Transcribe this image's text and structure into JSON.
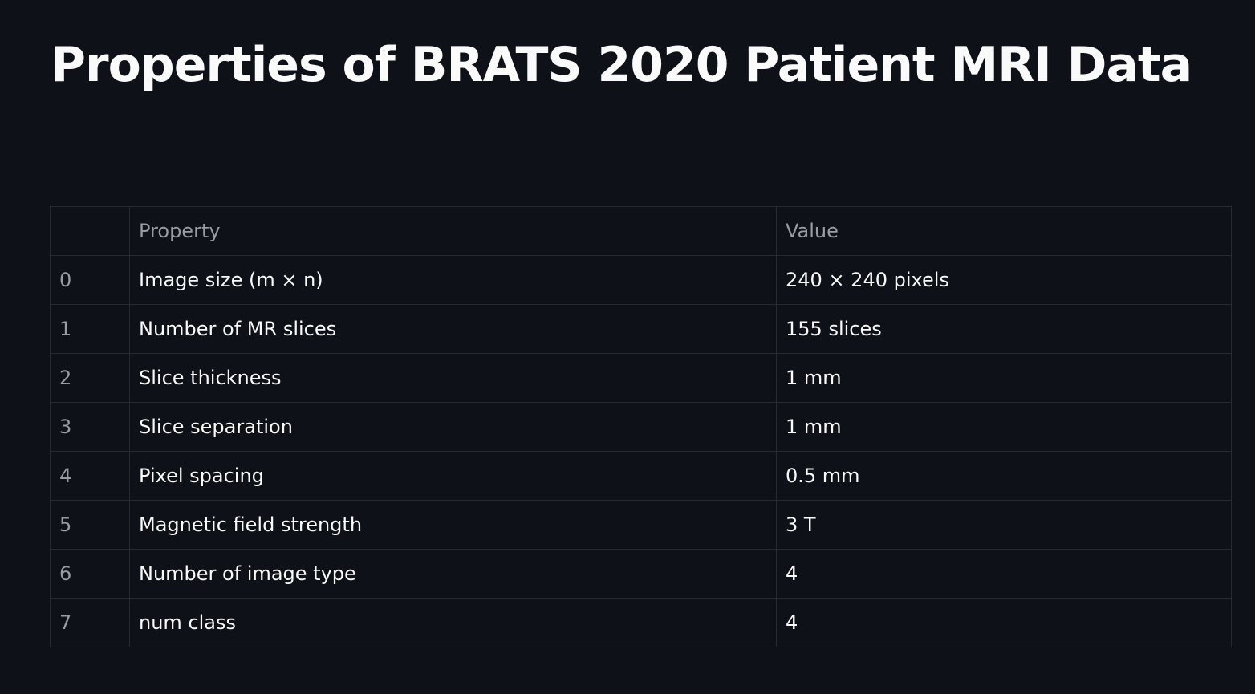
{
  "page": {
    "title": "Properties of BRATS 2020 Patient MRI Data"
  },
  "table": {
    "columns": [
      "",
      "Property",
      "Value"
    ],
    "rows": [
      {
        "index": "0",
        "property": "Image size (m × n)",
        "value": "240 × 240 pixels"
      },
      {
        "index": "1",
        "property": "Number of MR slices",
        "value": "155 slices"
      },
      {
        "index": "2",
        "property": "Slice thickness",
        "value": "1 mm"
      },
      {
        "index": "3",
        "property": "Slice separation",
        "value": "1 mm"
      },
      {
        "index": "4",
        "property": "Pixel spacing",
        "value": "0.5 mm"
      },
      {
        "index": "5",
        "property": "Magnetic field strength",
        "value": "3 T"
      },
      {
        "index": "6",
        "property": "Number of image type",
        "value": "4"
      },
      {
        "index": "7",
        "property": "num class",
        "value": "4"
      }
    ]
  },
  "colors": {
    "background": "#0e1117",
    "text": "#fafafa",
    "muted_text": "#9a9ca3",
    "grid_border": "#262a33"
  }
}
